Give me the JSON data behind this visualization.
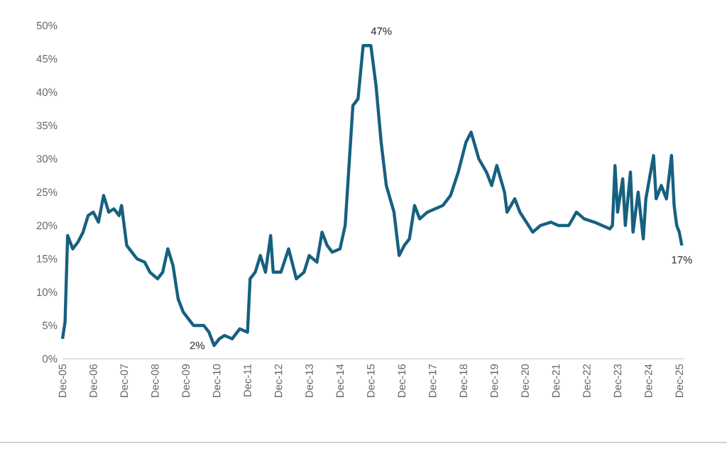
{
  "chart_data": {
    "type": "line",
    "x": [
      "2005-12",
      "2006-01",
      "2006-02",
      "2006-04",
      "2006-06",
      "2006-08",
      "2006-10",
      "2006-12",
      "2007-02",
      "2007-04",
      "2007-06",
      "2007-08",
      "2007-10",
      "2007-11",
      "2008-01",
      "2008-03",
      "2008-05",
      "2008-08",
      "2008-10",
      "2009-01",
      "2009-03",
      "2009-05",
      "2009-07",
      "2009-09",
      "2009-11",
      "2010-01",
      "2010-03",
      "2010-07",
      "2010-09",
      "2010-11",
      "2011-01",
      "2011-03",
      "2011-06",
      "2011-09",
      "2011-12",
      "2012-01",
      "2012-03",
      "2012-05",
      "2012-07",
      "2012-09",
      "2012-10",
      "2013-01",
      "2013-04",
      "2013-07",
      "2013-10",
      "2013-12",
      "2014-03",
      "2014-05",
      "2014-07",
      "2014-09",
      "2014-12",
      "2015-02",
      "2015-05",
      "2015-07",
      "2015-08",
      "2015-09",
      "2015-12",
      "2016-02",
      "2016-04",
      "2016-06",
      "2016-09",
      "2016-11",
      "2017-01",
      "2017-03",
      "2017-05",
      "2017-07",
      "2017-10",
      "2018-01",
      "2018-04",
      "2018-07",
      "2018-10",
      "2019-01",
      "2019-03",
      "2019-06",
      "2019-09",
      "2019-11",
      "2020-01",
      "2020-04",
      "2020-05",
      "2020-08",
      "2020-10",
      "2021-03",
      "2021-06",
      "2021-10",
      "2022-01",
      "2022-05",
      "2022-08",
      "2022-11",
      "2023-03",
      "2023-06",
      "2023-09",
      "2023-10",
      "2023-11",
      "2023-12",
      "2024-02",
      "2024-03",
      "2024-05",
      "2024-06",
      "2024-08",
      "2024-10",
      "2024-11",
      "2025-02",
      "2025-03",
      "2025-05",
      "2025-07",
      "2025-09",
      "2025-10",
      "2025-11",
      "2025-12",
      "2026-01"
    ],
    "series": [
      {
        "color": "#17607f",
        "values": [
          3,
          5.5,
          18.5,
          16.5,
          17.5,
          19,
          21.5,
          22,
          20.5,
          24.5,
          22,
          22.5,
          21.5,
          23,
          17,
          16,
          15,
          14.5,
          13,
          12,
          13,
          16.5,
          14,
          9,
          7,
          6,
          5,
          5,
          4,
          2,
          3,
          3.5,
          3,
          4.5,
          4,
          12,
          13,
          15.5,
          13,
          18.5,
          13,
          13,
          16.5,
          12,
          13,
          15.5,
          14.5,
          19,
          17,
          16,
          16.5,
          20,
          38,
          39,
          43,
          47,
          47,
          41,
          32.5,
          26,
          22,
          15.5,
          17,
          18,
          23,
          21,
          22,
          22.5,
          23,
          24.5,
          28,
          32.5,
          34,
          30,
          28,
          26,
          29,
          25,
          22,
          24,
          22,
          19,
          20,
          20.5,
          20,
          20,
          22,
          21,
          20.5,
          20,
          19.5,
          20,
          29,
          22,
          27,
          20,
          28,
          19,
          25,
          18,
          24,
          30.5,
          24,
          26,
          24,
          30.5,
          23,
          20,
          19,
          17
        ]
      }
    ],
    "xlim": [
      "2005-12",
      "2026-02"
    ],
    "xticks": [
      {
        "value": "2005-12",
        "label": "Dec-05"
      },
      {
        "value": "2006-12",
        "label": "Dec-06"
      },
      {
        "value": "2007-12",
        "label": "Dec-07"
      },
      {
        "value": "2008-12",
        "label": "Dec-08"
      },
      {
        "value": "2009-12",
        "label": "Dec-09"
      },
      {
        "value": "2010-12",
        "label": "Dec-10"
      },
      {
        "value": "2011-12",
        "label": "Dec-11"
      },
      {
        "value": "2012-12",
        "label": "Dec-12"
      },
      {
        "value": "2013-12",
        "label": "Dec-13"
      },
      {
        "value": "2014-12",
        "label": "Dec-14"
      },
      {
        "value": "2015-12",
        "label": "Dec-15"
      },
      {
        "value": "2016-12",
        "label": "Dec-16"
      },
      {
        "value": "2017-12",
        "label": "Dec-17"
      },
      {
        "value": "2018-12",
        "label": "Dec-18"
      },
      {
        "value": "2019-12",
        "label": "Dec-19"
      },
      {
        "value": "2020-12",
        "label": "Dec-20"
      },
      {
        "value": "2021-12",
        "label": "Dec-21"
      },
      {
        "value": "2022-12",
        "label": "Dec-22"
      },
      {
        "value": "2023-12",
        "label": "Dec-23"
      },
      {
        "value": "2024-12",
        "label": "Dec-24"
      },
      {
        "value": "2025-12",
        "label": "Dec-25"
      }
    ],
    "ylim": [
      0,
      50
    ],
    "yticks": [
      {
        "value": 0,
        "label": "0%"
      },
      {
        "value": 5,
        "label": "5%"
      },
      {
        "value": 10,
        "label": "10%"
      },
      {
        "value": 15,
        "label": "15%"
      },
      {
        "value": 20,
        "label": "20%"
      },
      {
        "value": 25,
        "label": "25%"
      },
      {
        "value": 30,
        "label": "30%"
      },
      {
        "value": 35,
        "label": "35%"
      },
      {
        "value": 40,
        "label": "40%"
      },
      {
        "value": 45,
        "label": "45%"
      },
      {
        "value": 50,
        "label": "50%"
      }
    ],
    "annotations": [
      {
        "text": "47%",
        "x": "2015-10",
        "y": 47
      },
      {
        "text": "2%",
        "x": "2010-11",
        "y": 2
      },
      {
        "text": "17%",
        "x": "2026-01",
        "y": 17
      }
    ]
  }
}
